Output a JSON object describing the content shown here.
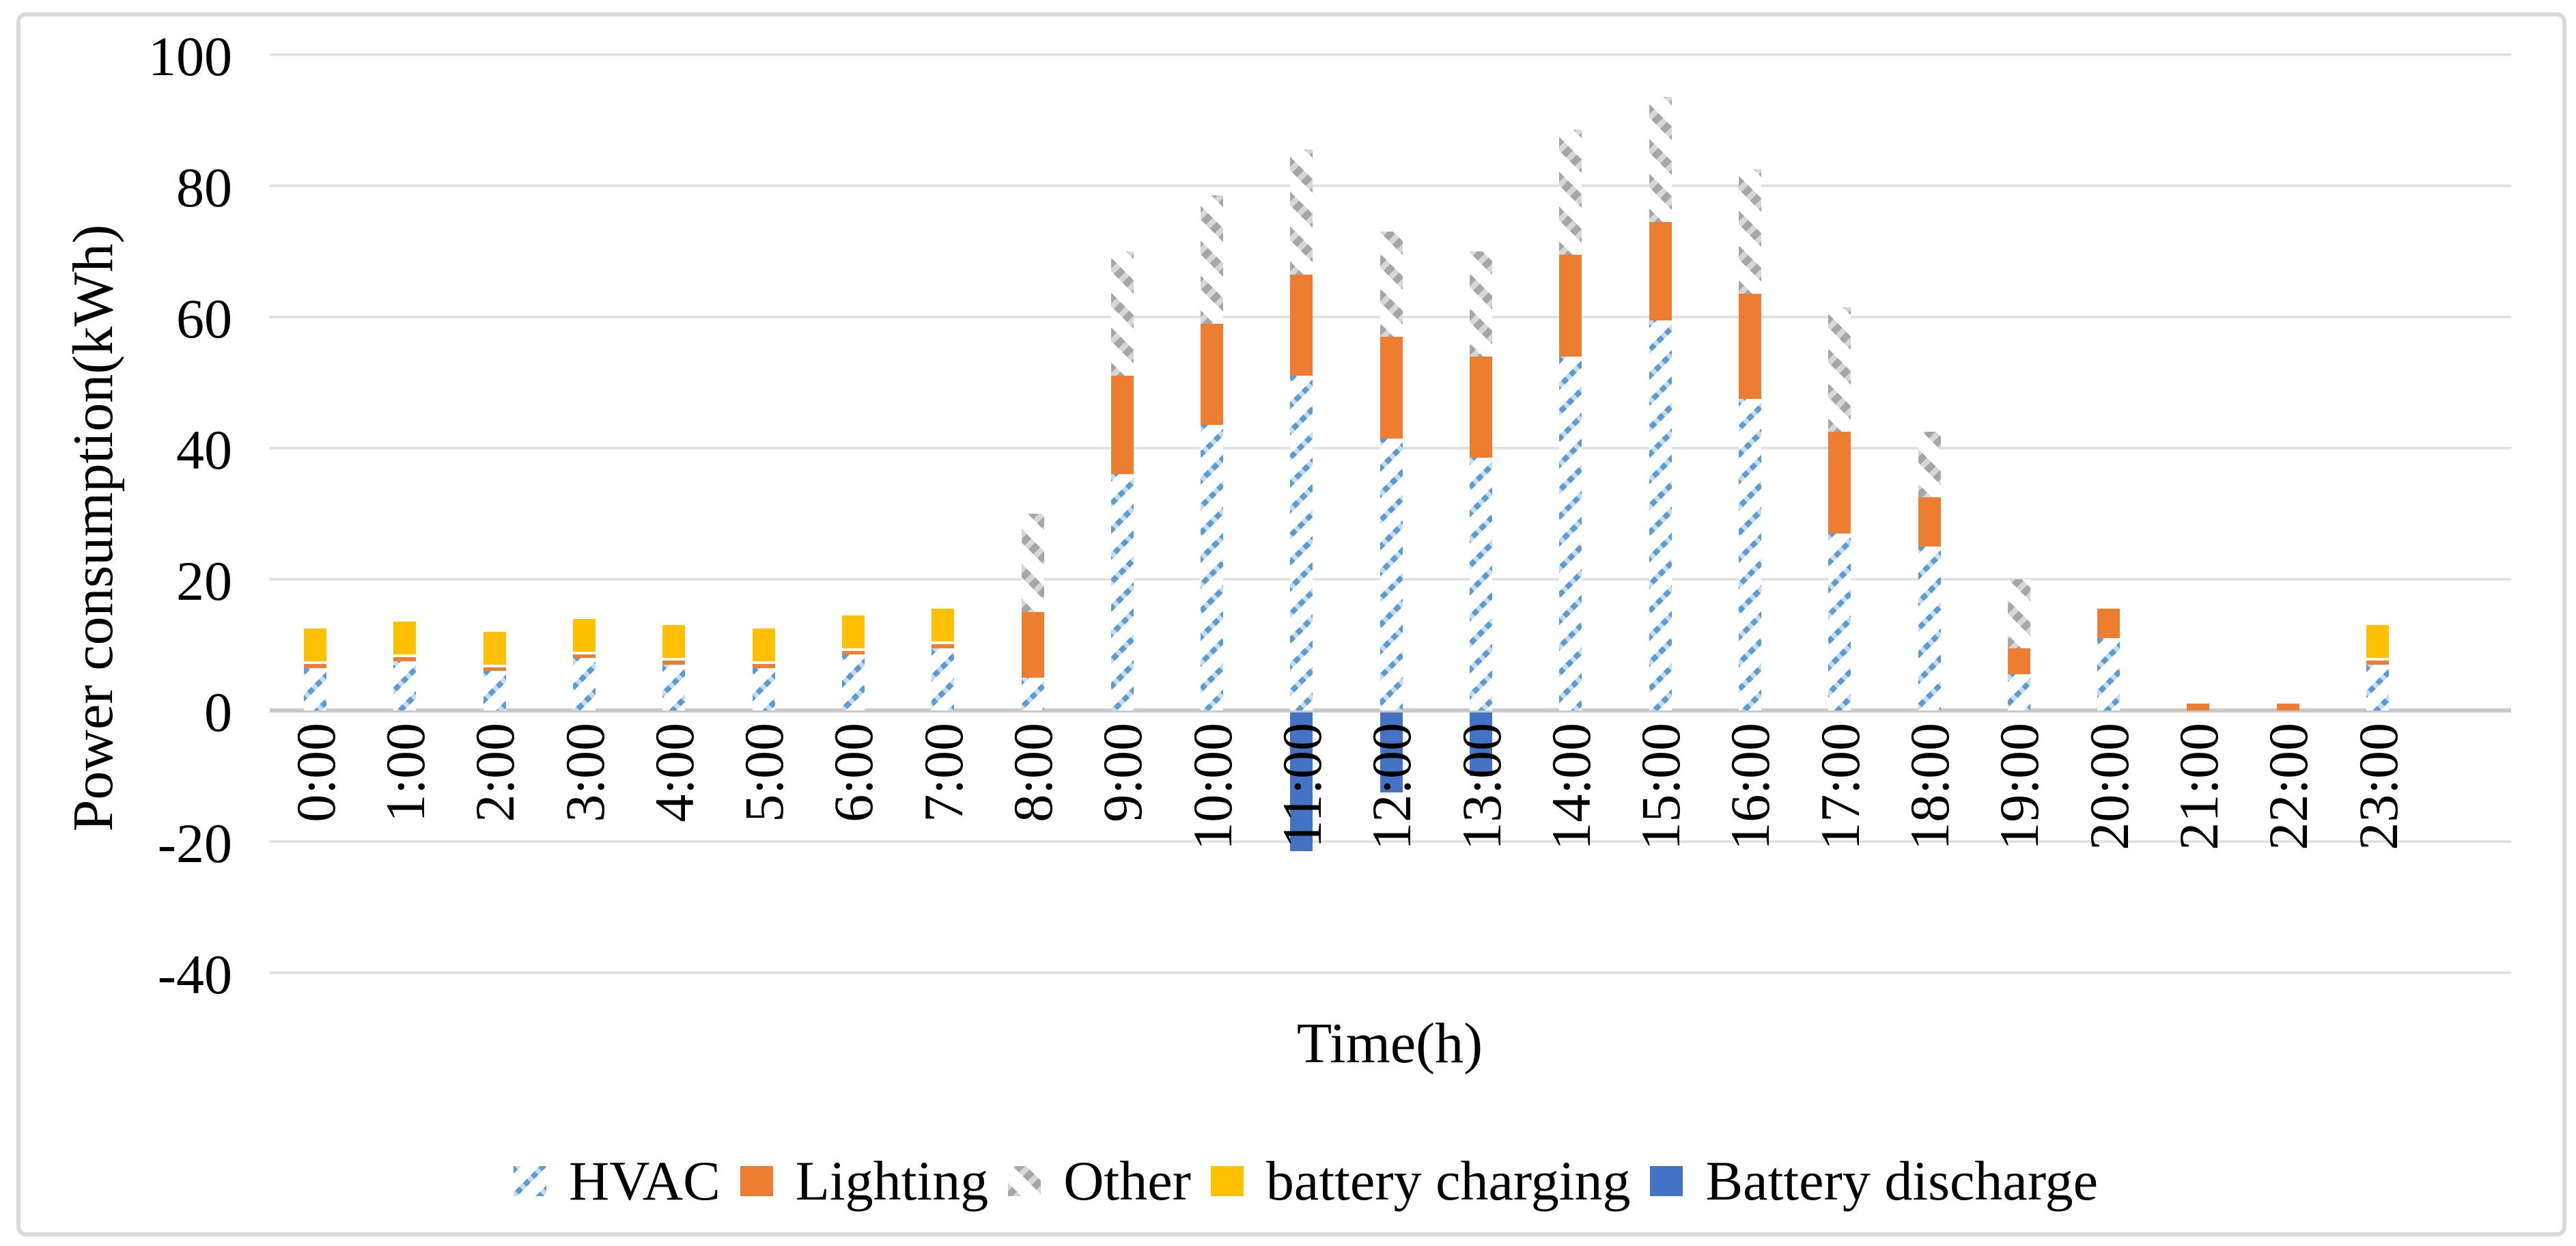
{
  "accent_colors": {
    "hvac_blue": "#5B9BD5",
    "lighting_orange": "#ED7D31",
    "other_gray": "#A6A6A6",
    "charging_yellow": "#FFC000",
    "discharge_blue": "#4472C4",
    "gridline_gray": "#E2E2E2",
    "axis_line_gray": "#C9C9C9",
    "frame_border_gray": "#D9D9D9"
  },
  "chart_data": {
    "type": "bar",
    "stacked": true,
    "title": "",
    "xlabel": "Time(h)",
    "ylabel": "Power consumption(kWh)",
    "ylim": [
      -40,
      100
    ],
    "yticks": [
      100,
      80,
      60,
      40,
      20,
      0,
      -20,
      -40
    ],
    "grid": true,
    "legend_position": "bottom",
    "categories": [
      "0:00",
      "1:00",
      "2:00",
      "3:00",
      "4:00",
      "5:00",
      "6:00",
      "7:00",
      "8:00",
      "9:00",
      "10:00",
      "11:00",
      "12:00",
      "13:00",
      "14:00",
      "15:00",
      "16:00",
      "17:00",
      "18:00",
      "19:00",
      "20:00",
      "21:00",
      "22:00",
      "23:00"
    ],
    "series": [
      {
        "name": "HVAC",
        "color": "#5B9BD5",
        "pattern": "hatch-blue",
        "values": [
          6.5,
          7.5,
          6,
          8,
          7,
          6.5,
          8.5,
          9.5,
          5,
          36,
          43.5,
          51,
          41.5,
          38.5,
          54,
          59.5,
          47.5,
          27,
          25,
          5.5,
          11,
          0,
          0,
          7
        ]
      },
      {
        "name": "Lighting",
        "color": "#ED7D31",
        "pattern": "solid",
        "values": [
          1,
          1,
          1,
          1,
          1,
          1,
          1,
          1,
          10,
          15,
          15.5,
          15.5,
          15.5,
          15.5,
          15.5,
          15,
          16,
          15.5,
          7.5,
          4,
          4.5,
          1,
          1,
          1
        ]
      },
      {
        "name": "Other",
        "color": "#A6A6A6",
        "pattern": "hatch-gray",
        "values": [
          0,
          0,
          0,
          0,
          0,
          0,
          0,
          0,
          15,
          19,
          19.5,
          19,
          16,
          16,
          19,
          19,
          19,
          19,
          10,
          10.5,
          0,
          0,
          0,
          0
        ]
      },
      {
        "name": "battery charging",
        "color": "#FFC000",
        "pattern": "solid",
        "values": [
          5,
          5,
          5,
          5,
          5,
          5,
          5,
          5,
          0,
          0,
          0,
          0,
          0,
          0,
          0,
          0,
          0,
          0,
          0,
          0,
          0,
          0,
          0,
          5
        ]
      },
      {
        "name": "Battery discharge",
        "color": "#4472C4",
        "pattern": "solid",
        "values": [
          0,
          0,
          0,
          0,
          0,
          0,
          0,
          0,
          0,
          0,
          0,
          -21.5,
          -12.5,
          -10,
          0,
          0,
          0,
          0,
          0,
          0,
          0,
          0,
          0,
          0
        ]
      }
    ]
  }
}
